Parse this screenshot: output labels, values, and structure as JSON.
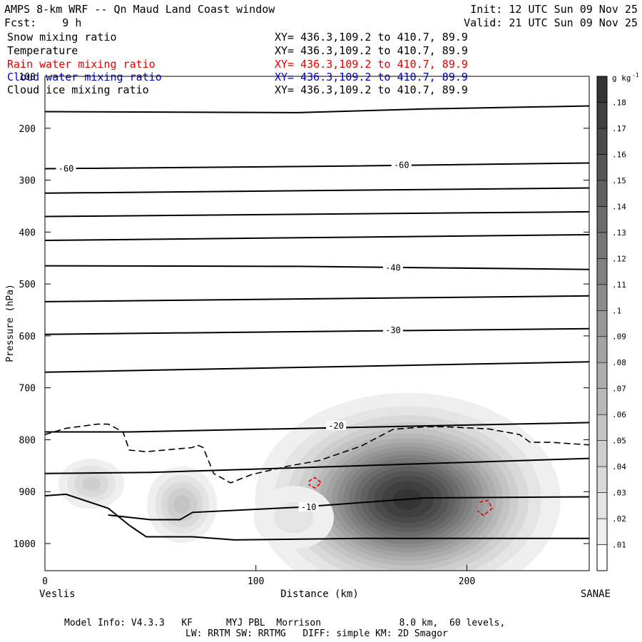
{
  "header": {
    "title": "AMPS 8-km WRF -- Qn Maud Land Coast window",
    "init": "Init: 12 UTC Sun 09 Nov 25",
    "fcst": "Fcst:    9 h",
    "valid": "Valid: 21 UTC Sun 09 Nov 25"
  },
  "fields": [
    {
      "name": "Snow mixing ratio",
      "xy": "XY= 436.3,109.2 to 410.7, 89.9",
      "color": "#000000"
    },
    {
      "name": "Temperature",
      "xy": "XY= 436.3,109.2 to 410.7, 89.9",
      "color": "#000000"
    },
    {
      "name": "Rain water mixing ratio",
      "xy": "XY= 436.3,109.2 to 410.7, 89.9",
      "color": "#e00000"
    },
    {
      "name": "Cloud water mixing ratio",
      "xy": "XY= 436.3,109.2 to 410.7, 89.9",
      "color": "#0000cc"
    },
    {
      "name": "Cloud ice mixing ratio",
      "xy": "XY= 436.3,109.2 to 410.7, 89.9",
      "color": "#000000"
    }
  ],
  "footer": {
    "line1": "Model Info: V4.3.3   KF      MYJ PBL  Morrison              8.0 km,  60 levels,",
    "line2": "LW: RRTM SW: RRTMG   DIFF: simple KM: 2D Smagor"
  },
  "chart_data": {
    "type": "contour_cross_section",
    "ylabel": "Pressure (hPa)",
    "xlabel": "Distance (km)",
    "x_left_label": "Veslis",
    "x_right_label": "SANAE",
    "xlim": [
      0,
      258
    ],
    "ylim": [
      1050,
      100
    ],
    "x_ticks": [
      0,
      100,
      200
    ],
    "y_ticks": [
      100,
      200,
      300,
      400,
      500,
      600,
      700,
      800,
      900,
      1000
    ],
    "y_tick_labels": [
      "100",
      "200",
      "300",
      "400",
      "500",
      "600",
      "700",
      "800",
      "900",
      "1000"
    ],
    "colorbar": {
      "unit": "g kg",
      "unit_exp": "-1",
      "ticks": [
        ".01",
        ".02",
        ".03",
        ".04",
        ".05",
        ".06",
        ".07",
        ".08",
        ".09",
        ".1",
        ".11",
        ".12",
        ".13",
        ".14",
        ".15",
        ".16",
        ".17",
        ".18"
      ]
    },
    "snow_blobs": [
      {
        "x": 172,
        "p": 915,
        "sx": 30,
        "sp": 85,
        "max": 0.185
      },
      {
        "x": 65,
        "p": 925,
        "sx": 9,
        "sp": 40,
        "max": 0.055
      },
      {
        "x": 22,
        "p": 885,
        "sx": 9,
        "sp": 28,
        "max": 0.045
      },
      {
        "x": 118,
        "p": 950,
        "sx": 14,
        "sp": 45,
        "max": 0.025
      }
    ],
    "temperature_contours": [
      {
        "points": [
          [
            0,
            168
          ],
          [
            120,
            170
          ],
          [
            180,
            163
          ],
          [
            258,
            157
          ]
        ]
      },
      {
        "label": "-60",
        "points": [
          [
            0,
            278
          ],
          [
            140,
            273
          ],
          [
            258,
            267
          ]
        ],
        "label_positions": [
          [
            10,
            278
          ],
          [
            169,
            271
          ]
        ]
      },
      {
        "points": [
          [
            0,
            325
          ],
          [
            258,
            315
          ]
        ]
      },
      {
        "points": [
          [
            0,
            370
          ],
          [
            258,
            361
          ]
        ]
      },
      {
        "points": [
          [
            0,
            416
          ],
          [
            258,
            405
          ]
        ]
      },
      {
        "label": "-40",
        "points": [
          [
            0,
            465
          ],
          [
            120,
            466
          ],
          [
            258,
            472
          ]
        ],
        "label_positions": [
          [
            165,
            469
          ]
        ]
      },
      {
        "points": [
          [
            0,
            534
          ],
          [
            258,
            523
          ]
        ]
      },
      {
        "label": "-30",
        "points": [
          [
            0,
            597
          ],
          [
            258,
            586
          ]
        ],
        "label_positions": [
          [
            165,
            589
          ]
        ]
      },
      {
        "points": [
          [
            0,
            670
          ],
          [
            258,
            650
          ]
        ]
      },
      {
        "label": "-20",
        "points": [
          [
            0,
            785
          ],
          [
            40,
            785
          ],
          [
            258,
            767
          ]
        ],
        "label_positions": [
          [
            138,
            773
          ]
        ]
      },
      {
        "points": [
          [
            0,
            865
          ],
          [
            50,
            863
          ],
          [
            258,
            836
          ]
        ]
      },
      {
        "label": "-10",
        "points": [
          [
            30,
            945
          ],
          [
            50,
            954
          ],
          [
            64,
            954
          ],
          [
            70,
            940
          ],
          [
            120,
            930
          ],
          [
            180,
            912
          ],
          [
            258,
            910
          ]
        ],
        "label_positions": [
          [
            125,
            930
          ]
        ]
      },
      {
        "points": [
          [
            0,
            908
          ],
          [
            10,
            905
          ],
          [
            30,
            932
          ],
          [
            40,
            965
          ],
          [
            48,
            987
          ],
          [
            70,
            987
          ],
          [
            90,
            993
          ],
          [
            150,
            990
          ],
          [
            258,
            990
          ]
        ]
      }
    ],
    "ice_contours": [
      {
        "style": "dashed",
        "points": [
          [
            0,
            790
          ],
          [
            10,
            778
          ],
          [
            25,
            770
          ],
          [
            30,
            770
          ],
          [
            37,
            785
          ],
          [
            40,
            820
          ],
          [
            48,
            823
          ],
          [
            70,
            815
          ],
          [
            72,
            810
          ],
          [
            75,
            815
          ],
          [
            80,
            865
          ],
          [
            88,
            883
          ],
          [
            98,
            867
          ],
          [
            115,
            851
          ],
          [
            130,
            840
          ],
          [
            150,
            812
          ],
          [
            165,
            780
          ],
          [
            180,
            775
          ],
          [
            190,
            775
          ],
          [
            210,
            779
          ],
          [
            225,
            790
          ],
          [
            230,
            805
          ],
          [
            240,
            805
          ],
          [
            258,
            810
          ]
        ]
      }
    ],
    "rain_contours": [
      {
        "style": "dashed",
        "points": [
          [
            125,
            880
          ],
          [
            128,
            873
          ],
          [
            131,
            883
          ],
          [
            128,
            893
          ],
          [
            125,
            886
          ]
        ]
      },
      {
        "style": "dashed",
        "points": [
          [
            206,
            920
          ],
          [
            210,
            917
          ],
          [
            212,
            932
          ],
          [
            208,
            946
          ],
          [
            205,
            937
          ]
        ]
      }
    ]
  }
}
